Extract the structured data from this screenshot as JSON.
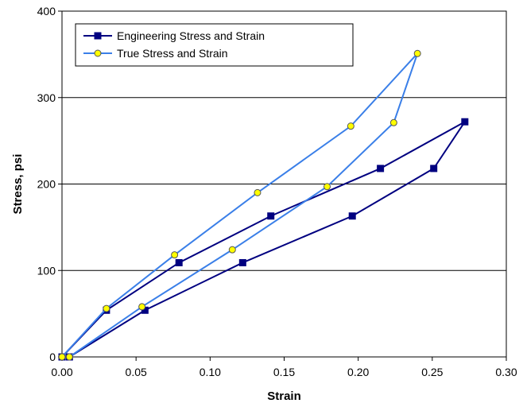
{
  "chart_data": {
    "type": "line",
    "xlabel": "Strain",
    "ylabel": "Stress, psi",
    "xlim": [
      0,
      0.3
    ],
    "ylim": [
      0,
      400
    ],
    "x_ticks": [
      "0.00",
      "0.05",
      "0.10",
      "0.15",
      "0.20",
      "0.25",
      "0.30"
    ],
    "y_ticks": [
      "0",
      "100",
      "200",
      "300",
      "400"
    ],
    "grid": "horizontal",
    "legend_position": "top-left",
    "series": [
      {
        "name": "Engineering Stress and Strain",
        "color": "#000080",
        "marker": "square",
        "points": [
          [
            0.0,
            0
          ],
          [
            0.03,
            54
          ],
          [
            0.079,
            109
          ],
          [
            0.141,
            163
          ],
          [
            0.215,
            218
          ],
          [
            0.272,
            272
          ],
          [
            0.251,
            218
          ],
          [
            0.196,
            163
          ],
          [
            0.122,
            109
          ],
          [
            0.056,
            54
          ],
          [
            0.005,
            0
          ]
        ]
      },
      {
        "name": "True Stress and Strain",
        "color": "#3A7FE8",
        "marker": "circle",
        "points": [
          [
            0.0,
            0
          ],
          [
            0.03,
            56
          ],
          [
            0.076,
            118
          ],
          [
            0.132,
            190
          ],
          [
            0.195,
            267
          ],
          [
            0.24,
            351
          ],
          [
            0.224,
            271
          ],
          [
            0.179,
            197
          ],
          [
            0.115,
            124
          ],
          [
            0.054,
            58
          ],
          [
            0.005,
            0
          ]
        ]
      }
    ]
  }
}
